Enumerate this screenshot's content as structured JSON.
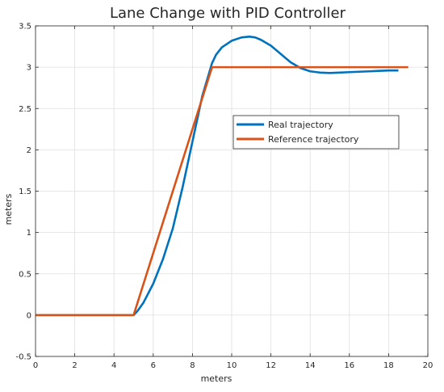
{
  "chart_data": {
    "type": "line",
    "title": "Lane Change with PID Controller",
    "xlabel": "meters",
    "ylabel": "meters",
    "xlim": [
      0,
      20
    ],
    "ylim": [
      -0.5,
      3.5
    ],
    "xticks": [
      0,
      2,
      4,
      6,
      8,
      10,
      12,
      14,
      16,
      18,
      20
    ],
    "yticks": [
      -0.5,
      0,
      0.5,
      1,
      1.5,
      2,
      2.5,
      3,
      3.5
    ],
    "grid": true,
    "legend_position": "center-right",
    "series": [
      {
        "name": "Real trajectory",
        "color": "#0072bd",
        "x": [
          0,
          0.5,
          1.0,
          1.5,
          2.0,
          2.5,
          3.0,
          3.5,
          4.0,
          4.5,
          5.0,
          5.2,
          5.5,
          6.0,
          6.5,
          7.0,
          7.5,
          8.0,
          8.5,
          9.0,
          9.2,
          9.5,
          10.0,
          10.5,
          10.9,
          11.2,
          11.5,
          12.0,
          12.5,
          13.0,
          13.5,
          14.0,
          14.5,
          15.0,
          15.5,
          16.0,
          16.5,
          17.0,
          17.5,
          18.0,
          18.5
        ],
        "y": [
          0,
          0,
          0,
          0,
          0,
          0,
          0,
          0,
          0,
          0,
          0,
          0.05,
          0.15,
          0.38,
          0.68,
          1.05,
          1.55,
          2.1,
          2.65,
          3.05,
          3.15,
          3.24,
          3.32,
          3.36,
          3.37,
          3.36,
          3.33,
          3.26,
          3.16,
          3.06,
          2.99,
          2.95,
          2.935,
          2.93,
          2.935,
          2.94,
          2.945,
          2.95,
          2.955,
          2.96,
          2.96
        ]
      },
      {
        "name": "Reference trajectory",
        "color": "#d95319",
        "x": [
          0,
          5.0,
          9.0,
          19.0
        ],
        "y": [
          0,
          0,
          3.0,
          3.0
        ]
      }
    ]
  }
}
